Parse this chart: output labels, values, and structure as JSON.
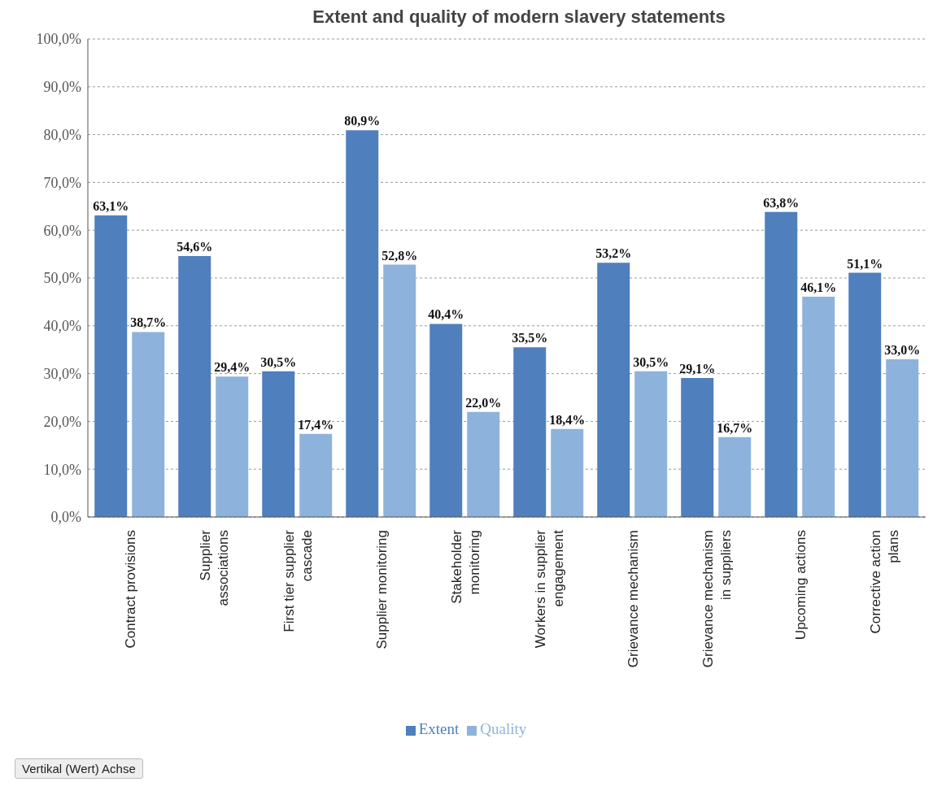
{
  "chart_data": {
    "type": "bar",
    "title": "Extent and quality of modern slavery statements",
    "categories": [
      "Contract provisions",
      "Supplier associations",
      "First tier supplier cascade",
      "Supplier monitoring",
      "Stakeholder monitoring",
      "Workers in supplier engagement",
      "Grievance mechanism",
      "Grievance mechanism in suppliers",
      "Upcoming actions",
      "Corrective action plans"
    ],
    "series": [
      {
        "name": "Extent",
        "color": "#4f7fbd",
        "values": [
          63.1,
          54.6,
          30.5,
          80.9,
          40.4,
          35.5,
          53.2,
          29.1,
          63.8,
          51.1
        ],
        "value_labels": [
          "63,1%",
          "54,6%",
          "30,5%",
          "80,9%",
          "40,4%",
          "35,5%",
          "53,2%",
          "29,1%",
          "63,8%",
          "51,1%"
        ]
      },
      {
        "name": "Quality",
        "color": "#8db3dc",
        "values": [
          38.7,
          29.4,
          17.4,
          52.8,
          22.0,
          18.4,
          30.5,
          16.7,
          46.1,
          33.0
        ],
        "value_labels": [
          "38,7%",
          "29,4%",
          "17,4%",
          "52,8%",
          "22,0%",
          "18,4%",
          "30,5%",
          "16,7%",
          "46,1%",
          "33,0%"
        ]
      }
    ],
    "ylim": [
      0,
      100
    ],
    "yticks": [
      {
        "value": 0,
        "label": "0,0%"
      },
      {
        "value": 10,
        "label": "10,0%"
      },
      {
        "value": 20,
        "label": "20,0%"
      },
      {
        "value": 30,
        "label": "30,0%"
      },
      {
        "value": 40,
        "label": "40,0%"
      },
      {
        "value": 50,
        "label": "50,0%"
      },
      {
        "value": 60,
        "label": "60,0%"
      },
      {
        "value": 70,
        "label": "70,0%"
      },
      {
        "value": 80,
        "label": "80,0%"
      },
      {
        "value": 90,
        "label": "90,0%"
      },
      {
        "value": 100,
        "label": "100,0%"
      }
    ],
    "grid": "y",
    "legend": "bottom",
    "annotations": [
      "Vertikal (Wert) Achse"
    ]
  }
}
